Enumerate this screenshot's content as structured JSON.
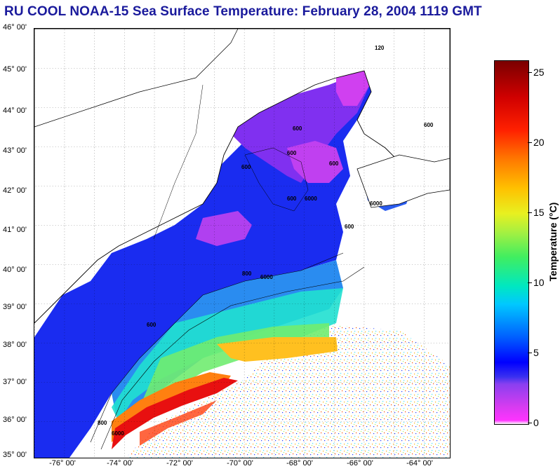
{
  "title": "RU COOL  NOAA-15  Sea Surface Temperature:  February 28, 2004 1119 GMT",
  "map": {
    "latitude_labels": [
      "46° 00'",
      "45° 00'",
      "44° 00'",
      "43° 00'",
      "42° 00'",
      "41° 00'",
      "40° 00'",
      "39° 00'",
      "38° 00'",
      "37° 00'",
      "36° 00'",
      "35° 00'"
    ],
    "longitude_labels": [
      "-76° 00'",
      "-74° 00'",
      "-72° 00'",
      "-70° 00'",
      "-68° 00'",
      "-66° 00'",
      "-64° 00'"
    ],
    "bathymetry_labels": [
      "600",
      "600",
      "600",
      "600",
      "600",
      "600",
      "600",
      "800",
      "6000",
      "6000",
      "600",
      "6000",
      "800",
      "6000",
      "120"
    ]
  },
  "colorbar": {
    "title": "Temperature (°C)",
    "tick_labels": [
      "25",
      "20",
      "15",
      "10",
      "5",
      "0"
    ],
    "range": [
      0,
      26
    ],
    "colors": {
      "min": "#ff33ff",
      "cold": "#0000ff",
      "mid": "#40ee60",
      "warm": "#ffc000",
      "max": "#7a0000"
    }
  }
}
